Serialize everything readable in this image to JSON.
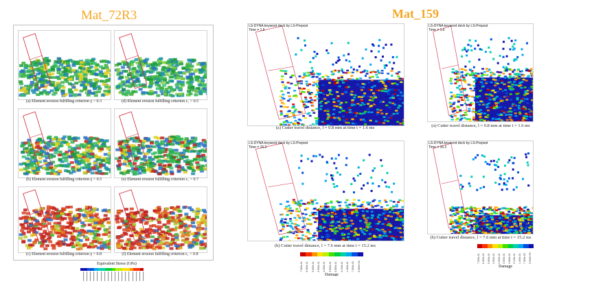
{
  "left": {
    "title": "Mat_72R3",
    "captions": [
      "(a)  Element erosion fulfilling criterion γ > 0.3",
      "(d)  Element erosion fulfilling criterion ε₁ > 0.5",
      "(b)  Element erosion fulfilling criterion γ > 0.5",
      "(e)  Element erosion fulfilling criterion ε₁ > 0.7",
      "(c)  Element erosion fulfilling criterion γ > 0.8",
      "(f)  Element erosion fulfilling criterion ε₁ > 0.8"
    ],
    "colorbar_title": "Equivalent Stress (GPa)"
  },
  "right": {
    "title": "Mat_159",
    "deck_label": "LS-DYNA keyword deck by LS-Prepost",
    "times": [
      "Time =      1.6",
      "Time =      1.6",
      "Time =     15.2",
      "Time =     15.2"
    ],
    "captions": [
      "(a) Cutter travel distance, l = 0.8 mm at time t = 1.6 ms",
      "(a) Cutter travel distance, l = 0.8 mm at time t = 1.6 ms",
      "(b) Cutter travel distance, l = 7.6 mm at time t = 15.2 ms",
      "(b) Cutter travel distance, l = 7.6 mm at time t = 15.2 ms"
    ],
    "colorbar_title": "Damage",
    "ticks": [
      "7.000e-01",
      "6.300e-01",
      "5.600e-01",
      "4.900e-01",
      "4.200e-01",
      "3.500e-01",
      "2.800e-01",
      "2.100e-01",
      "1.400e-01",
      "7.000e-02",
      "0.000e+00"
    ]
  },
  "colors": {
    "accent": "#f5a623",
    "colormap": [
      "#c80000",
      "#ff3000",
      "#ff9000",
      "#ffe000",
      "#b8f000",
      "#40e000",
      "#00d040",
      "#00d0b0",
      "#00a8f0",
      "#0050e0",
      "#1010b0"
    ]
  }
}
